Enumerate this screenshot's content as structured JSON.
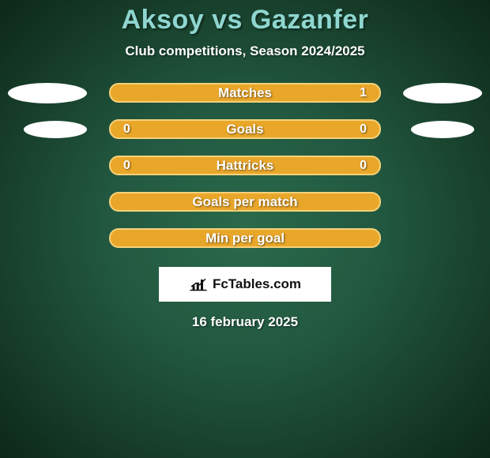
{
  "title": "Aksoy vs Gazanfer",
  "subtitle": "Club competitions, Season 2024/2025",
  "date": "16 february 2025",
  "branding": "FcTables.com",
  "colors": {
    "title": "#8fd6d0",
    "bar_fill": "#e9a72a",
    "bar_border": "#f5d17a",
    "ellipse": "#ffffff",
    "text": "#ffffff",
    "bg_center": "#2a6a4a",
    "bg_edge": "#0d2818"
  },
  "rows": [
    {
      "label": "Matches",
      "left": "",
      "right": "1",
      "ellipse_left": true,
      "ellipse_right": true,
      "ellipse_size": "big"
    },
    {
      "label": "Goals",
      "left": "0",
      "right": "0",
      "ellipse_left": true,
      "ellipse_right": true,
      "ellipse_size": "small"
    },
    {
      "label": "Hattricks",
      "left": "0",
      "right": "0",
      "ellipse_left": false,
      "ellipse_right": false,
      "ellipse_size": ""
    },
    {
      "label": "Goals per match",
      "left": "",
      "right": "",
      "ellipse_left": false,
      "ellipse_right": false,
      "ellipse_size": ""
    },
    {
      "label": "Min per goal",
      "left": "",
      "right": "",
      "ellipse_left": false,
      "ellipse_right": false,
      "ellipse_size": ""
    }
  ]
}
